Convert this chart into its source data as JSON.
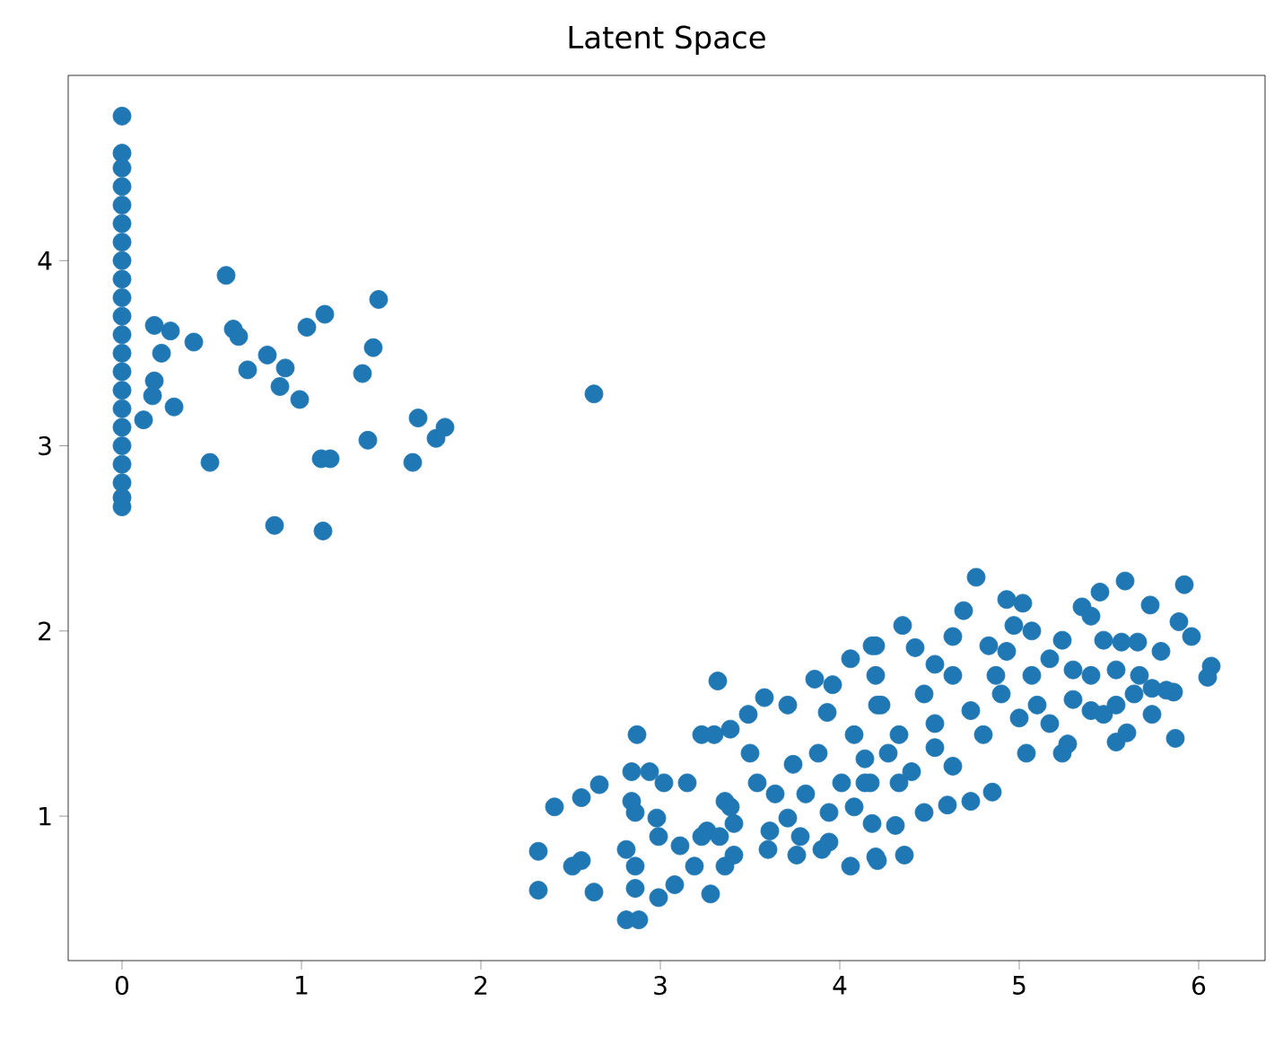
{
  "chart_data": {
    "type": "scatter",
    "title": "Latent Space",
    "color": "#1f77b4",
    "marker": "circle",
    "xlim": [
      -0.3,
      6.37
    ],
    "ylim": [
      0.22,
      5.0
    ],
    "xticks": [
      0,
      1,
      2,
      3,
      4,
      5,
      6
    ],
    "yticks": [
      1,
      2,
      3,
      4
    ],
    "x": [
      0,
      0,
      0,
      0,
      0,
      0,
      0,
      0,
      0,
      0,
      0,
      0,
      0,
      0,
      0,
      0,
      0,
      0,
      0,
      0,
      0,
      0,
      0.58,
      1.43,
      1.13,
      1.03,
      0.18,
      0.27,
      0.4,
      0.62,
      0.65,
      0.22,
      1.4,
      0.81,
      0.91,
      0.7,
      1.34,
      0.88,
      0.99,
      0.18,
      0.17,
      0.29,
      0.12,
      2.63,
      1.65,
      1.8,
      1.75,
      1.37,
      1.11,
      1.16,
      0.49,
      1.62,
      0.85,
      1.12,
      2.32,
      2.32,
      2.41,
      2.56,
      2.66,
      2.51,
      2.56,
      2.63,
      2.87,
      2.81,
      2.88,
      2.84,
      2.94,
      3.02,
      2.84,
      2.86,
      2.98,
      2.99,
      2.81,
      2.86,
      2.86,
      2.99,
      3.08,
      3.11,
      3.15,
      3.19,
      3.28,
      3.32,
      3.23,
      3.3,
      3.39,
      3.26,
      3.36,
      3.41,
      3.39,
      3.49,
      3.58,
      3.5,
      3.6,
      3.71,
      3.76,
      3.86,
      3.9,
      3.96,
      4.06,
      4.2,
      4.06,
      4.2,
      3.93,
      3.54,
      3.64,
      3.74,
      3.81,
      3.88,
      3.94,
      4.01,
      4.08,
      4.14,
      4.18,
      3.71,
      3.41,
      3.61,
      3.78,
      3.94,
      3.36,
      4.08,
      4.21,
      4.14,
      3.33,
      3.23,
      4.76,
      4.69,
      4.93,
      5.02,
      4.97,
      5.07,
      4.35,
      4.18,
      4.42,
      4.63,
      4.83,
      4.93,
      5.24,
      5.45,
      5.35,
      5.4,
      5.59,
      5.73,
      5.92,
      5.89,
      5.96,
      5.79,
      6.07,
      6.05,
      5.47,
      5.57,
      5.66,
      5.82,
      5.86,
      5.74,
      5.87,
      5.54,
      5.6,
      5.47,
      5.24,
      5.27,
      5.04,
      4.85,
      4.73,
      4.6,
      4.47,
      4.31,
      4.21,
      4.36,
      5.17,
      5.3,
      5.4,
      5.54,
      5.67,
      5.74,
      4.23,
      4.33,
      4.47,
      4.53,
      4.63,
      4.73,
      4.8,
      4.9,
      5.0,
      5.1,
      5.17,
      5.3,
      5.4,
      5.54,
      5.64,
      4.27,
      4.4,
      4.53,
      4.63,
      4.17,
      4.33,
      4.87,
      5.07,
      4.53,
      4.2
    ],
    "values": [
      4.78,
      4.58,
      4.5,
      4.4,
      4.3,
      4.2,
      4.1,
      4.0,
      3.9,
      3.8,
      3.7,
      3.6,
      3.5,
      3.4,
      3.3,
      3.2,
      3.1,
      3.0,
      2.9,
      2.8,
      2.72,
      2.67,
      3.92,
      3.79,
      3.71,
      3.64,
      3.65,
      3.62,
      3.56,
      3.63,
      3.59,
      3.5,
      3.53,
      3.49,
      3.42,
      3.41,
      3.39,
      3.32,
      3.25,
      3.35,
      3.27,
      3.21,
      3.14,
      3.28,
      3.15,
      3.1,
      3.04,
      3.03,
      2.93,
      2.93,
      2.91,
      2.91,
      2.57,
      2.54,
      0.81,
      0.6,
      1.05,
      1.1,
      1.17,
      0.73,
      0.76,
      0.59,
      1.44,
      0.44,
      0.44,
      1.24,
      1.24,
      1.18,
      1.08,
      1.02,
      0.99,
      0.89,
      0.82,
      0.73,
      0.61,
      0.56,
      0.63,
      0.84,
      1.18,
      0.73,
      0.58,
      1.73,
      1.44,
      1.44,
      1.47,
      0.92,
      0.73,
      0.79,
      1.05,
      1.55,
      1.64,
      1.34,
      0.82,
      1.6,
      0.79,
      1.74,
      0.82,
      1.71,
      1.85,
      1.92,
      0.73,
      0.78,
      1.56,
      1.18,
      1.12,
      1.28,
      1.12,
      1.34,
      1.02,
      1.18,
      1.05,
      1.31,
      0.96,
      0.99,
      0.96,
      0.92,
      0.89,
      0.86,
      1.08,
      1.44,
      1.6,
      1.18,
      0.89,
      0.89,
      2.29,
      2.11,
      2.17,
      2.15,
      2.03,
      2.0,
      2.03,
      1.92,
      1.91,
      1.97,
      1.92,
      1.89,
      1.95,
      2.21,
      2.13,
      2.08,
      2.27,
      2.14,
      2.25,
      2.05,
      1.97,
      1.89,
      1.81,
      1.75,
      1.95,
      1.94,
      1.94,
      1.68,
      1.67,
      1.55,
      1.42,
      1.4,
      1.45,
      1.55,
      1.34,
      1.39,
      1.34,
      1.13,
      1.08,
      1.06,
      1.02,
      0.95,
      0.76,
      0.79,
      1.85,
      1.79,
      1.76,
      1.79,
      1.76,
      1.69,
      1.6,
      1.44,
      1.66,
      1.5,
      1.76,
      1.57,
      1.44,
      1.66,
      1.53,
      1.6,
      1.5,
      1.63,
      1.57,
      1.6,
      1.66,
      1.34,
      1.24,
      1.37,
      1.27,
      1.18,
      1.18,
      1.76,
      1.76,
      1.82,
      1.76
    ]
  }
}
